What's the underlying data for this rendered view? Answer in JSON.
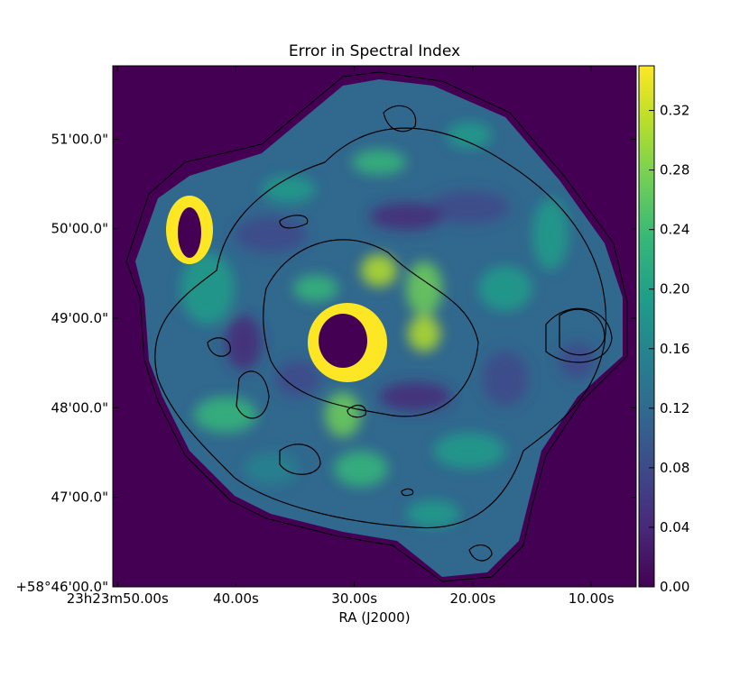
{
  "chart_data": {
    "type": "image",
    "title": "Error in Spectral Index",
    "x_label": "RA (J2000)",
    "xlim": [
      50.4,
      6.2
    ],
    "xticks": [
      {
        "value": 50,
        "label": "23h23m50.00s"
      },
      {
        "value": 40,
        "label": "40.00s"
      },
      {
        "value": 30,
        "label": "30.00s"
      },
      {
        "value": 20,
        "label": "20.00s"
      },
      {
        "value": 10,
        "label": "10.00s"
      }
    ],
    "ylim": [
      46,
      51.82
    ],
    "yticks": [
      {
        "value": 46,
        "label": "+58°46'00.0\""
      },
      {
        "value": 47,
        "label": "47'00.0\""
      },
      {
        "value": 48,
        "label": "48'00.0\""
      },
      {
        "value": 49,
        "label": "49'00.0\""
      },
      {
        "value": 50,
        "label": "50'00.0\""
      },
      {
        "value": 51,
        "label": "51'00.0\""
      }
    ],
    "clim": [
      0,
      0.35
    ],
    "cticks": [
      {
        "value": 0,
        "label": "0.00"
      },
      0.04,
      0.08,
      0.12,
      0.16,
      {
        "value": 0.2,
        "label": "0.20"
      },
      0.24,
      0.28,
      0.32
    ],
    "colormap": [
      "#440154",
      "#482878",
      "#3e4989",
      "#31688e",
      "#26828e",
      "#1f9e89",
      "#35b779",
      "#6ece58",
      "#b5de2b",
      "#fde725"
    ]
  }
}
